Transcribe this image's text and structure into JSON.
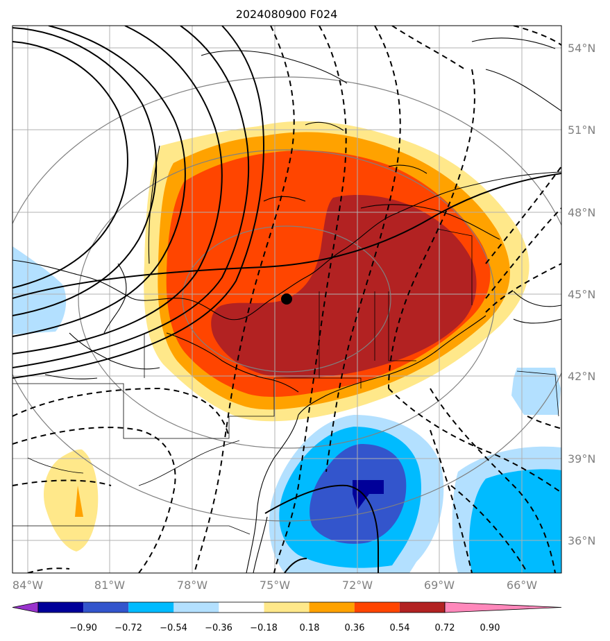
{
  "title": "2024080900 F024",
  "lon_labels": [
    "84°W",
    "81°W",
    "78°W",
    "75°W",
    "72°W",
    "69°W",
    "66°W"
  ],
  "lat_labels": [
    "54°N",
    "51°N",
    "48°N",
    "45°N",
    "42°N",
    "39°N",
    "36°N"
  ],
  "colorbar": {
    "labels": [
      "−0.90",
      "−0.72",
      "−0.54",
      "−0.36",
      "−0.18",
      "0.18",
      "0.36",
      "0.54",
      "0.72",
      "0.90"
    ],
    "colors": [
      "#9933cc",
      "#000099",
      "#3355cc",
      "#00bbff",
      "#b3e0ff",
      "#ffffff",
      "#ffe88a",
      "#ffa200",
      "#ff4500",
      "#b22222",
      "#ff88bb"
    ]
  },
  "colors": {
    "coastline": "#000000",
    "graticule": "#b0b0b0",
    "great_circles": "#808080",
    "contour": "#000000",
    "marker": "#000000"
  }
}
